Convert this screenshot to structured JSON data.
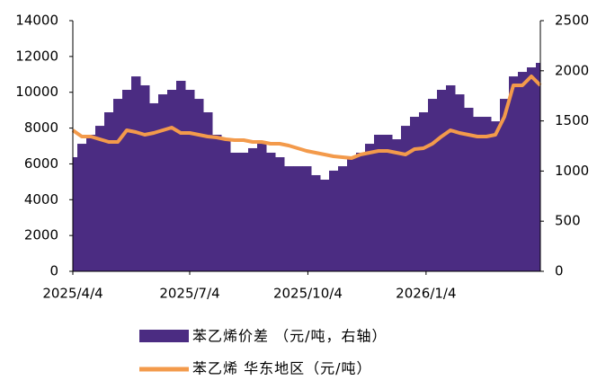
{
  "chart_data": {
    "type": "bar-line",
    "x": [
      "2025/4/4",
      "2025/4/11",
      "2025/4/18",
      "2025/4/25",
      "2025/5/2",
      "2025/5/9",
      "2025/5/16",
      "2025/5/23",
      "2025/5/30",
      "2025/6/6",
      "2025/6/13",
      "2025/6/20",
      "2025/6/27",
      "2025/7/4",
      "2025/7/11",
      "2025/7/18",
      "2025/7/25",
      "2025/8/1",
      "2025/8/8",
      "2025/8/15",
      "2025/8/22",
      "2025/8/29",
      "2025/9/5",
      "2025/9/12",
      "2025/9/19",
      "2025/9/26",
      "2025/10/3",
      "2025/10/10",
      "2025/10/17",
      "2025/10/24",
      "2025/10/31",
      "2025/11/7",
      "2025/11/14",
      "2025/11/21",
      "2025/11/28",
      "2025/12/5",
      "2025/12/12",
      "2025/12/19",
      "2025/12/26",
      "2026/1/2",
      "2026/1/9",
      "2026/1/16",
      "2026/1/23",
      "2026/1/30",
      "2026/2/6",
      "2026/2/13",
      "2026/2/20",
      "2026/2/27",
      "2026/3/6",
      "2026/3/13",
      "2026/3/20",
      "2026/3/27",
      "2026/4/3"
    ],
    "xlim": [
      "2025/4/4",
      "2026/4/3"
    ],
    "xticks": [
      "2025/4/4",
      "2025/7/4",
      "2025/10/4",
      "2026/1/4"
    ],
    "ylim": [
      0,
      14000
    ],
    "yticks": [
      0,
      2000,
      4000,
      6000,
      8000,
      10000,
      12000,
      14000
    ],
    "y2lim": [
      0,
      2500
    ],
    "y2ticks": [
      0,
      500,
      1000,
      1500,
      2000,
      2500
    ],
    "series": [
      {
        "name": "苯乙烯价差 （元/吨，右轴）",
        "color": "#4b2c82",
        "axis": "y2",
        "kind": "bar",
        "values": [
          1138,
          1272,
          1362,
          1451,
          1586,
          1720,
          1810,
          1944,
          1855,
          1676,
          1765,
          1810,
          1900,
          1810,
          1720,
          1586,
          1362,
          1317,
          1183,
          1183,
          1228,
          1272,
          1183,
          1138,
          1048,
          1048,
          1048,
          959,
          914,
          1004,
          1048,
          1138,
          1183,
          1272,
          1362,
          1362,
          1317,
          1451,
          1541,
          1586,
          1720,
          1810,
          1855,
          1765,
          1631,
          1541,
          1541,
          1496,
          1720,
          1944,
          1989,
          2034,
          2079
        ]
      },
      {
        "name": "苯乙烯 华东地区（元/吨）",
        "color": "#f39a4b",
        "kind": "line",
        "values": [
          7878,
          7527,
          7527,
          7376,
          7226,
          7226,
          7878,
          7778,
          7627,
          7728,
          7878,
          8029,
          7728,
          7728,
          7627,
          7527,
          7477,
          7376,
          7326,
          7326,
          7226,
          7226,
          7126,
          7126,
          7025,
          6875,
          6724,
          6624,
          6523,
          6423,
          6373,
          6323,
          6523,
          6624,
          6724,
          6724,
          6624,
          6523,
          6824,
          6875,
          7126,
          7527,
          7878,
          7728,
          7627,
          7527,
          7527,
          7627,
          8631,
          10387,
          10387,
          10889,
          10387
        ]
      }
    ]
  }
}
